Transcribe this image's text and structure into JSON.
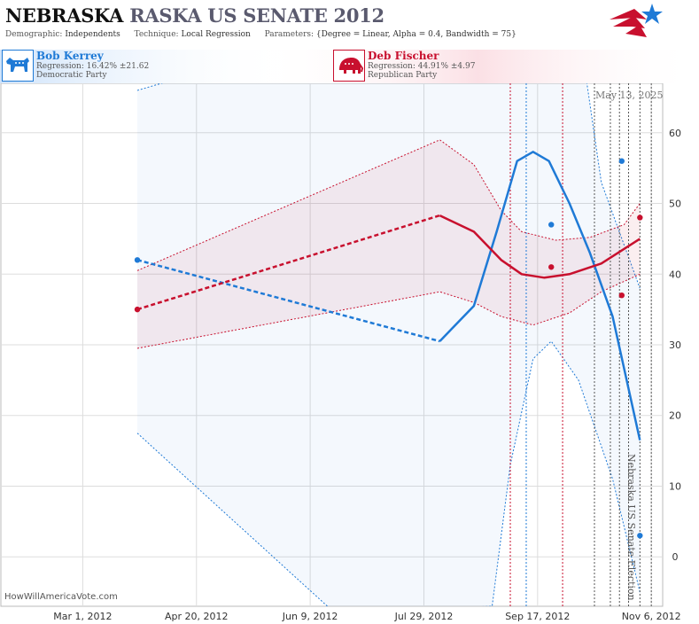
{
  "header": {
    "title_state": "NEBRASKA",
    "title_race": "RASKA US SENATE 2012",
    "demographic_label": "Demographic:",
    "demographic": "Independents",
    "technique_label": "Technique:",
    "technique": "Local Regression",
    "parameters_label": "Parameters:",
    "parameters": "{Degree = Linear, Alpha = 0.4, Bandwidth = 75}"
  },
  "candidates": [
    {
      "name": "Bob Kerrey",
      "regression": "Regression: 16.42% ±21.62",
      "party": "Democratic Party",
      "icon": "donkey-icon",
      "color": "#1f7ad6"
    },
    {
      "name": "Deb Fischer",
      "regression": "Regression: 44.91% ±4.97",
      "party": "Republican Party",
      "icon": "elephant-icon",
      "color": "#c8102e"
    }
  ],
  "watermark": "HowWillAmericaVote.com",
  "date_stamp": "May 13, 2025",
  "event_label": "Nebraska US Senate Election",
  "colors": {
    "dem": "#1f7ad6",
    "rep": "#c8102e",
    "grid": "#dddddd"
  },
  "chart_data": {
    "type": "line",
    "x_axis": {
      "type": "date",
      "min": "2012-01-25",
      "max": "2012-11-11",
      "ticks": [
        "Mar 1, 2012",
        "Apr 20, 2012",
        "Jun 9, 2012",
        "Jul 29, 2012",
        "Sep 17, 2012",
        "Nov 6, 2012"
      ],
      "tick_dates": [
        "2012-03-01",
        "2012-04-20",
        "2012-06-09",
        "2012-07-29",
        "2012-09-17",
        "2012-11-06"
      ]
    },
    "y_axis": {
      "min": -7,
      "max": 67,
      "ticks": [
        0,
        10,
        20,
        30,
        40,
        50,
        60
      ]
    },
    "grid": true,
    "event_lines": [
      {
        "date": "2012-09-05",
        "color": "rep"
      },
      {
        "date": "2012-09-12",
        "color": "dem"
      },
      {
        "date": "2012-09-28",
        "color": "rep"
      },
      {
        "date": "2012-10-12",
        "color": "gray"
      },
      {
        "date": "2012-10-19",
        "color": "gray"
      },
      {
        "date": "2012-10-23",
        "color": "gray"
      },
      {
        "date": "2012-10-27",
        "color": "gray"
      },
      {
        "date": "2012-11-01",
        "color": "gray"
      },
      {
        "date": "2012-11-06",
        "color": "gray"
      }
    ],
    "series": [
      {
        "party": "dem",
        "points": [
          {
            "x": "2012-03-25",
            "y": 42
          },
          {
            "x": "2012-09-23",
            "y": 47
          },
          {
            "x": "2012-10-24",
            "y": 56
          },
          {
            "x": "2012-11-01",
            "y": 3
          }
        ],
        "trend_dashed": [
          {
            "x": "2012-03-25",
            "y": 42
          },
          {
            "x": "2012-08-05",
            "y": 30.5
          }
        ],
        "trend_solid": [
          {
            "x": "2012-08-05",
            "y": 30.5
          },
          {
            "x": "2012-08-20",
            "y": 35.5
          },
          {
            "x": "2012-08-30",
            "y": 46
          },
          {
            "x": "2012-09-08",
            "y": 56
          },
          {
            "x": "2012-09-15",
            "y": 57.3
          },
          {
            "x": "2012-09-22",
            "y": 56
          },
          {
            "x": "2012-10-01",
            "y": 50
          },
          {
            "x": "2012-10-10",
            "y": 43
          },
          {
            "x": "2012-10-20",
            "y": 34
          },
          {
            "x": "2012-11-01",
            "y": 16.5
          }
        ],
        "upper": [
          {
            "x": "2012-03-25",
            "y": 66
          },
          {
            "x": "2012-10-01",
            "y": 84
          },
          {
            "x": "2012-10-15",
            "y": 53
          },
          {
            "x": "2012-11-01",
            "y": 38
          }
        ],
        "lower": [
          {
            "x": "2012-03-25",
            "y": 17.5
          },
          {
            "x": "2012-06-20",
            "y": -8
          },
          {
            "x": "2012-08-28",
            "y": -7
          },
          {
            "x": "2012-09-05",
            "y": 13
          },
          {
            "x": "2012-09-15",
            "y": 28
          },
          {
            "x": "2012-09-23",
            "y": 30.5
          },
          {
            "x": "2012-10-05",
            "y": 25
          },
          {
            "x": "2012-10-20",
            "y": 11
          },
          {
            "x": "2012-11-01",
            "y": -5
          }
        ]
      },
      {
        "party": "rep",
        "points": [
          {
            "x": "2012-03-25",
            "y": 35
          },
          {
            "x": "2012-09-23",
            "y": 41
          },
          {
            "x": "2012-10-24",
            "y": 37
          },
          {
            "x": "2012-11-01",
            "y": 48
          }
        ],
        "trend_dashed": [
          {
            "x": "2012-03-25",
            "y": 35
          },
          {
            "x": "2012-08-05",
            "y": 48.3
          }
        ],
        "trend_solid": [
          {
            "x": "2012-08-05",
            "y": 48.3
          },
          {
            "x": "2012-08-20",
            "y": 46
          },
          {
            "x": "2012-09-01",
            "y": 42
          },
          {
            "x": "2012-09-10",
            "y": 40
          },
          {
            "x": "2012-09-20",
            "y": 39.5
          },
          {
            "x": "2012-10-01",
            "y": 40
          },
          {
            "x": "2012-10-15",
            "y": 41.5
          },
          {
            "x": "2012-11-01",
            "y": 45
          }
        ],
        "upper": [
          {
            "x": "2012-03-25",
            "y": 40.5
          },
          {
            "x": "2012-08-05",
            "y": 59
          },
          {
            "x": "2012-08-20",
            "y": 55.5
          },
          {
            "x": "2012-09-01",
            "y": 49
          },
          {
            "x": "2012-09-10",
            "y": 46
          },
          {
            "x": "2012-09-25",
            "y": 44.8
          },
          {
            "x": "2012-10-10",
            "y": 45.2
          },
          {
            "x": "2012-10-25",
            "y": 47
          },
          {
            "x": "2012-11-01",
            "y": 50
          }
        ],
        "lower": [
          {
            "x": "2012-03-25",
            "y": 29.5
          },
          {
            "x": "2012-08-05",
            "y": 37.5
          },
          {
            "x": "2012-08-20",
            "y": 36
          },
          {
            "x": "2012-09-01",
            "y": 34
          },
          {
            "x": "2012-09-15",
            "y": 32.8
          },
          {
            "x": "2012-10-01",
            "y": 34.5
          },
          {
            "x": "2012-10-15",
            "y": 37.5
          },
          {
            "x": "2012-11-01",
            "y": 40
          }
        ]
      }
    ]
  }
}
